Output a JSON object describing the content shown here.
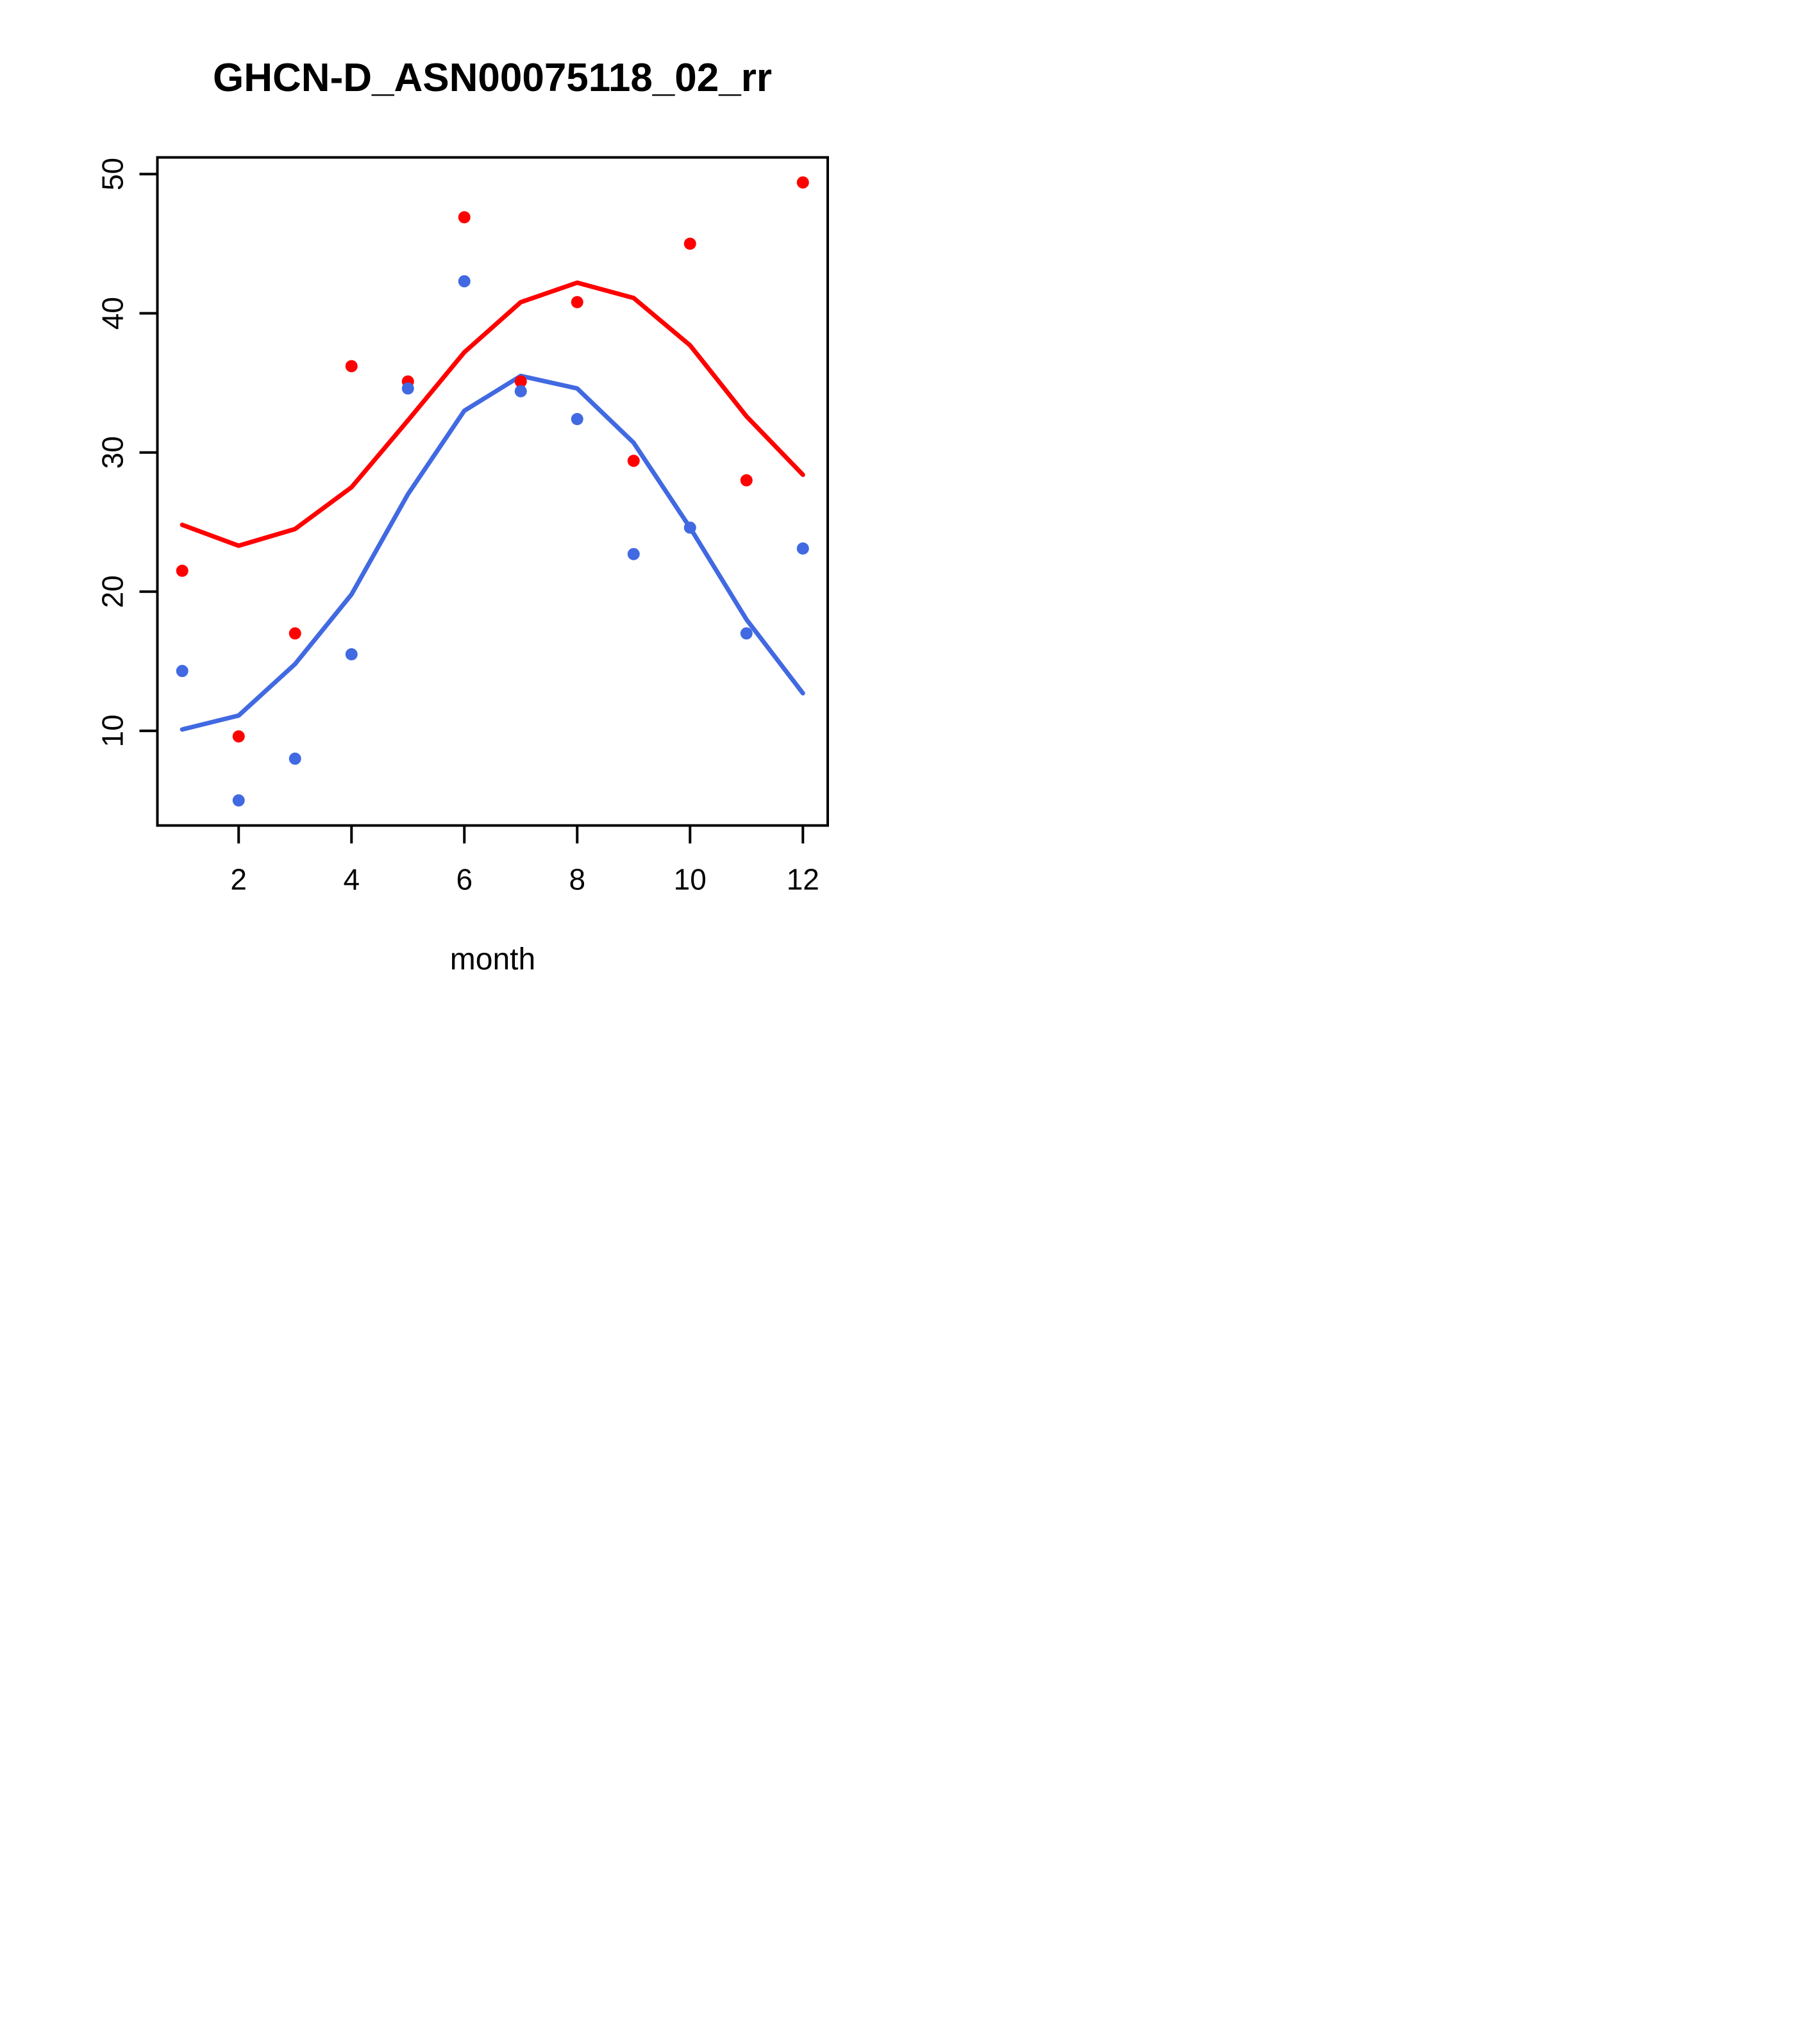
{
  "chart_data": {
    "type": "scatter",
    "title": "GHCN-D_ASN00075118_02_rr",
    "xlabel": "month",
    "ylabel": "",
    "x_tick_labels": [
      "2",
      "4",
      "6",
      "8",
      "10",
      "12"
    ],
    "x_tick_values": [
      2,
      4,
      6,
      8,
      10,
      12
    ],
    "y_tick_labels": [
      "10",
      "20",
      "30",
      "40",
      "50"
    ],
    "y_tick_values": [
      10,
      20,
      30,
      40,
      50
    ],
    "xlim": [
      0.56,
      12.44
    ],
    "ylim": [
      3.2,
      51.2
    ],
    "grid": false,
    "legend_position": "none",
    "x": [
      1,
      2,
      3,
      4,
      5,
      6,
      7,
      8,
      9,
      10,
      11,
      12
    ],
    "series": [
      {
        "name": "red-points",
        "kind": "scatter",
        "color": "#ff0000",
        "values": [
          21.5,
          9.6,
          17.0,
          36.2,
          35.1,
          46.9,
          35.1,
          40.8,
          29.4,
          45.0,
          28.0,
          49.4
        ]
      },
      {
        "name": "blue-points",
        "kind": "scatter",
        "color": "#4169e1",
        "values": [
          14.3,
          5.0,
          8.0,
          15.5,
          34.6,
          42.3,
          34.4,
          32.4,
          22.7,
          24.6,
          17.0,
          23.1
        ]
      },
      {
        "name": "red-line",
        "kind": "line",
        "color": "#ff0000",
        "values": [
          24.8,
          23.3,
          24.5,
          27.5,
          32.3,
          37.2,
          40.8,
          42.2,
          41.1,
          37.7,
          32.6,
          28.4
        ]
      },
      {
        "name": "blue-line",
        "kind": "line",
        "color": "#4169e1",
        "values": [
          10.1,
          11.1,
          14.8,
          19.8,
          27.0,
          33.0,
          35.5,
          34.6,
          30.7,
          24.6,
          18.0,
          12.7
        ]
      }
    ]
  },
  "colors": {
    "red": "#ff0000",
    "blue": "#4169e1",
    "axis": "#000000",
    "background": "#ffffff"
  }
}
